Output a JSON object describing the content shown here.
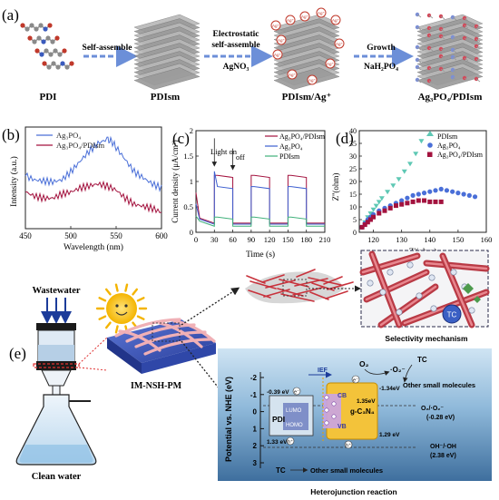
{
  "panel_a": {
    "label": "(a)",
    "stages": [
      "PDI",
      "PDIsm",
      "PDIsm/Ag⁺",
      "Ag₃PO₄/PDIsm"
    ],
    "arrows": [
      {
        "top": "Self-assemble",
        "bottom": ""
      },
      {
        "top": "Electrostatic",
        "top2": "self-assemble",
        "bottom": "AgNO₃"
      },
      {
        "top": "Growth",
        "bottom": "NaH₂PO₄"
      }
    ],
    "ion_label": "Ag⁺"
  },
  "panel_b": {
    "label": "(b)",
    "chart_data": {
      "type": "line",
      "xlabel": "Wavelength (nm)",
      "ylabel": "Intensity (a.u.)",
      "xlim": [
        450,
        600
      ],
      "xticks": [
        450,
        500,
        550,
        600
      ],
      "series": [
        {
          "name": "Ag₃PO₄",
          "color": "#4a6fd8",
          "x": [
            450,
            460,
            470,
            480,
            490,
            500,
            510,
            520,
            530,
            540,
            545,
            550,
            560,
            570,
            580,
            590,
            600
          ],
          "y": [
            0.52,
            0.48,
            0.47,
            0.46,
            0.48,
            0.56,
            0.66,
            0.76,
            0.84,
            0.88,
            0.86,
            0.8,
            0.68,
            0.56,
            0.5,
            0.44,
            0.4
          ]
        },
        {
          "name": "Ag₃PO₄/PDIsm",
          "color": "#a3123e",
          "x": [
            450,
            460,
            470,
            480,
            490,
            500,
            510,
            520,
            530,
            540,
            550,
            560,
            570,
            580,
            590,
            600
          ],
          "y": [
            0.36,
            0.32,
            0.3,
            0.3,
            0.34,
            0.36,
            0.4,
            0.42,
            0.44,
            0.42,
            0.38,
            0.3,
            0.24,
            0.22,
            0.2,
            0.16
          ]
        }
      ]
    }
  },
  "panel_c": {
    "label": "(c)",
    "chart_data": {
      "type": "line",
      "xlabel": "Time (s)",
      "ylabel": "Current density (μA/cm²)",
      "xlim": [
        0,
        210
      ],
      "ylim": [
        0,
        2.0
      ],
      "xticks": [
        0,
        30,
        60,
        90,
        120,
        150,
        180,
        210
      ],
      "yticks": [
        0.0,
        0.5,
        1.0,
        1.5,
        2.0
      ],
      "annotations": [
        "Light on",
        "off"
      ],
      "light_periods": [
        [
          30,
          60
        ],
        [
          90,
          120
        ],
        [
          150,
          180
        ]
      ],
      "series": [
        {
          "name": "Ag₃PO₄/PDIsm",
          "color": "#a3123e",
          "on": 1.12,
          "off": 0.18
        },
        {
          "name": "Ag₃PO₄",
          "color": "#3d5fd0",
          "on": 0.9,
          "off": 0.16
        },
        {
          "name": "PDIsm",
          "color": "#3fb07a",
          "on": 0.3,
          "off": 0.12
        }
      ]
    }
  },
  "panel_d": {
    "label": "(d)",
    "chart_data": {
      "type": "scatter",
      "xlabel": "Z'(ohm)",
      "ylabel": "Z''(ohm)",
      "xlim": [
        115,
        160
      ],
      "ylim": [
        0,
        40
      ],
      "xticks": [
        120,
        130,
        140,
        150,
        160
      ],
      "yticks": [
        0,
        5,
        10,
        15,
        20,
        25,
        30,
        35,
        40
      ],
      "series": [
        {
          "name": "PDIsm",
          "color": "#5ec8b4",
          "marker": "triangle",
          "x": [
            116,
            117,
            118,
            119,
            120,
            121,
            122,
            123,
            125,
            127,
            129,
            131,
            133,
            135,
            137
          ],
          "y": [
            2,
            4,
            6,
            7.5,
            9,
            10.5,
            12,
            13.5,
            16,
            18.5,
            21,
            24,
            27,
            31,
            36
          ]
        },
        {
          "name": "Ag₃PO₄",
          "color": "#4a6fd8",
          "marker": "circle",
          "x": [
            116,
            117,
            118,
            119,
            120,
            122,
            124,
            126,
            128,
            130,
            132,
            134,
            136,
            138,
            140,
            142,
            144,
            146,
            148,
            150,
            152,
            154,
            156
          ],
          "y": [
            2,
            3.5,
            5,
            6,
            7,
            8.5,
            9.5,
            10.5,
            11.5,
            12.5,
            13.5,
            14.5,
            15,
            15.5,
            16,
            16.5,
            17,
            16.5,
            16,
            15.5,
            15,
            14.5,
            14
          ]
        },
        {
          "name": "Ag₃PO₄/PDIsm",
          "color": "#a3123e",
          "marker": "square",
          "x": [
            116,
            117,
            118,
            119,
            120,
            122,
            124,
            126,
            128,
            130,
            132,
            134,
            136,
            138,
            140,
            142,
            144
          ],
          "y": [
            2,
            3,
            4,
            5,
            6,
            7.5,
            8.5,
            9.5,
            10.5,
            11,
            11.5,
            12,
            12.5,
            12.5,
            12,
            12,
            12
          ]
        }
      ]
    }
  },
  "panel_e": {
    "label": "(e)",
    "wastewater": "Wastewater",
    "clean_water": "Clean water",
    "membrane": "IM-NSH-PM",
    "selectivity": "Selectivity mechanism",
    "tc_bubble": "TC",
    "heterojunction": "Heterojunction reaction",
    "energy": {
      "ylabel": "Potential vs. NHE (eV)",
      "yticks": [
        "-2",
        "-1",
        "0",
        "1",
        "2",
        "3"
      ],
      "ief": "IEF",
      "pdi": "PDI",
      "cn": "g-C₃N₄",
      "cb": "CB",
      "vb": "VB",
      "lumo": "LUMO",
      "homo": "HOMO",
      "pdi_lumo_value": "-0.39 eV",
      "pdi_homo_value": "1.33 eV",
      "cb_value": "-1.34eV",
      "vb_value": "1.29 eV",
      "mid_value": "1.35eV",
      "o2": "O₂",
      "o2_rad": "·O₂⁻",
      "o2_couple": "O₂/·O₂⁻",
      "o2_couple_value": "(-0.28 eV)",
      "oh_couple": "OH⁻/·OH",
      "oh_couple_value": "(2.38 eV)",
      "electron": "e⁻",
      "hole": "h⁺",
      "tc_top": "TC",
      "small_top": "Other small molecules",
      "tc_bottom": "TC",
      "small_bottom": "Other small molecules"
    }
  }
}
